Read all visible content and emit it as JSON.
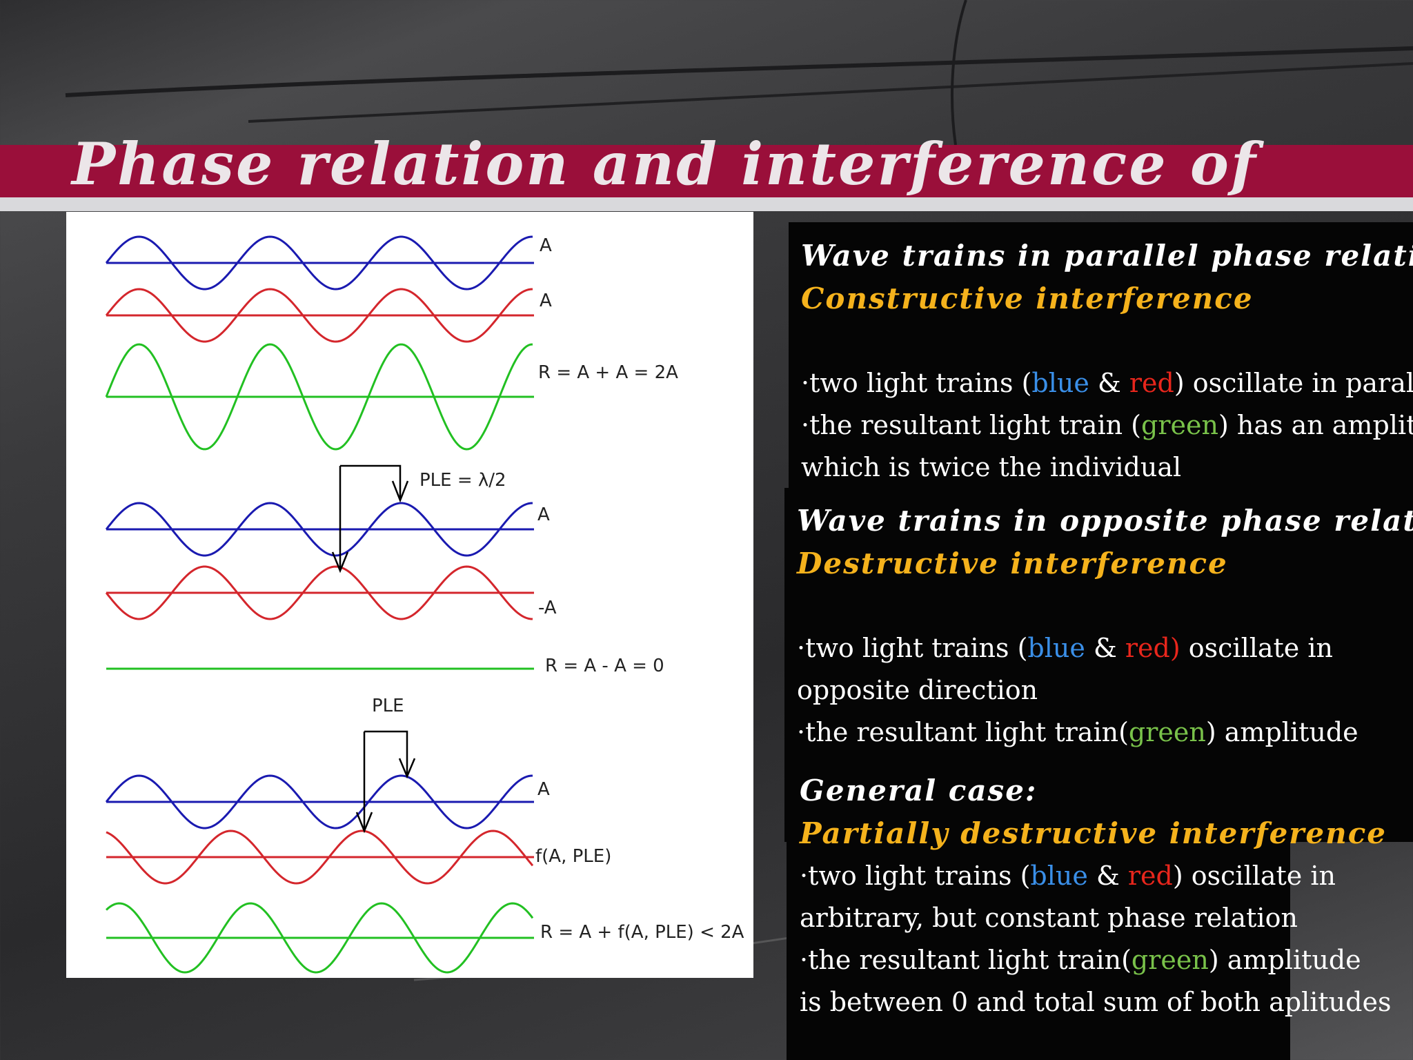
{
  "title": "Phase relation and interference of",
  "figure": {
    "labels": {
      "a1": "A",
      "a2": "A",
      "r1": "R = A + A = 2A",
      "ple1": "PLE = λ/2",
      "a3": "A",
      "minus_a": "-A",
      "r2": "R = A - A = 0",
      "ple2": "PLE",
      "a4": "A",
      "f": "f(A, PLE)",
      "r3": "R = A + f(A, PLE) < 2A"
    }
  },
  "panel1": {
    "heading": "Wave trains in parallel phase relation",
    "subheading": "Constructive interference",
    "b1_pre": "·two light trains (",
    "b1_blue": "blue",
    "b1_amp": " & ",
    "b1_red": "red",
    "b1_post": ") oscillate in parallel",
    "b2_pre": "·the resultant light train (",
    "b2_green": "green",
    "b2_post": ") has an amplitude",
    "b3": "which is twice the individual"
  },
  "panel2": {
    "heading": "Wave trains in opposite phase relation",
    "subheading": "Destructive interference",
    "b1_pre": "·two light trains (",
    "b1_blue": "blue",
    "b1_amp": " & ",
    "b1_red": "red)",
    "b1_post": " oscillate in",
    "b2": "opposite direction",
    "b3_pre": "·the resultant light train(",
    "b3_green": "green",
    "b3_post": ") amplitude"
  },
  "panel3": {
    "heading": "General case:",
    "subheading": "Partially destructive interference",
    "b1_pre": "·two light trains (",
    "b1_blue": "blue",
    "b1_amp": " & ",
    "b1_red": "red",
    "b1_post": ") oscillate in",
    "b2": "arbitrary, but constant phase relation",
    "b3_pre": "·the resultant light train(",
    "b3_green": "green",
    "b3_post": ") amplitude",
    "b4": "is between 0 and total sum of both aplitudes"
  },
  "colors": {
    "title_band": "#9a0f3a",
    "blue_wave": "#1a1ab0",
    "red_wave": "#d4262c",
    "green_wave": "#22c022",
    "highlight": "#f5b21c"
  }
}
